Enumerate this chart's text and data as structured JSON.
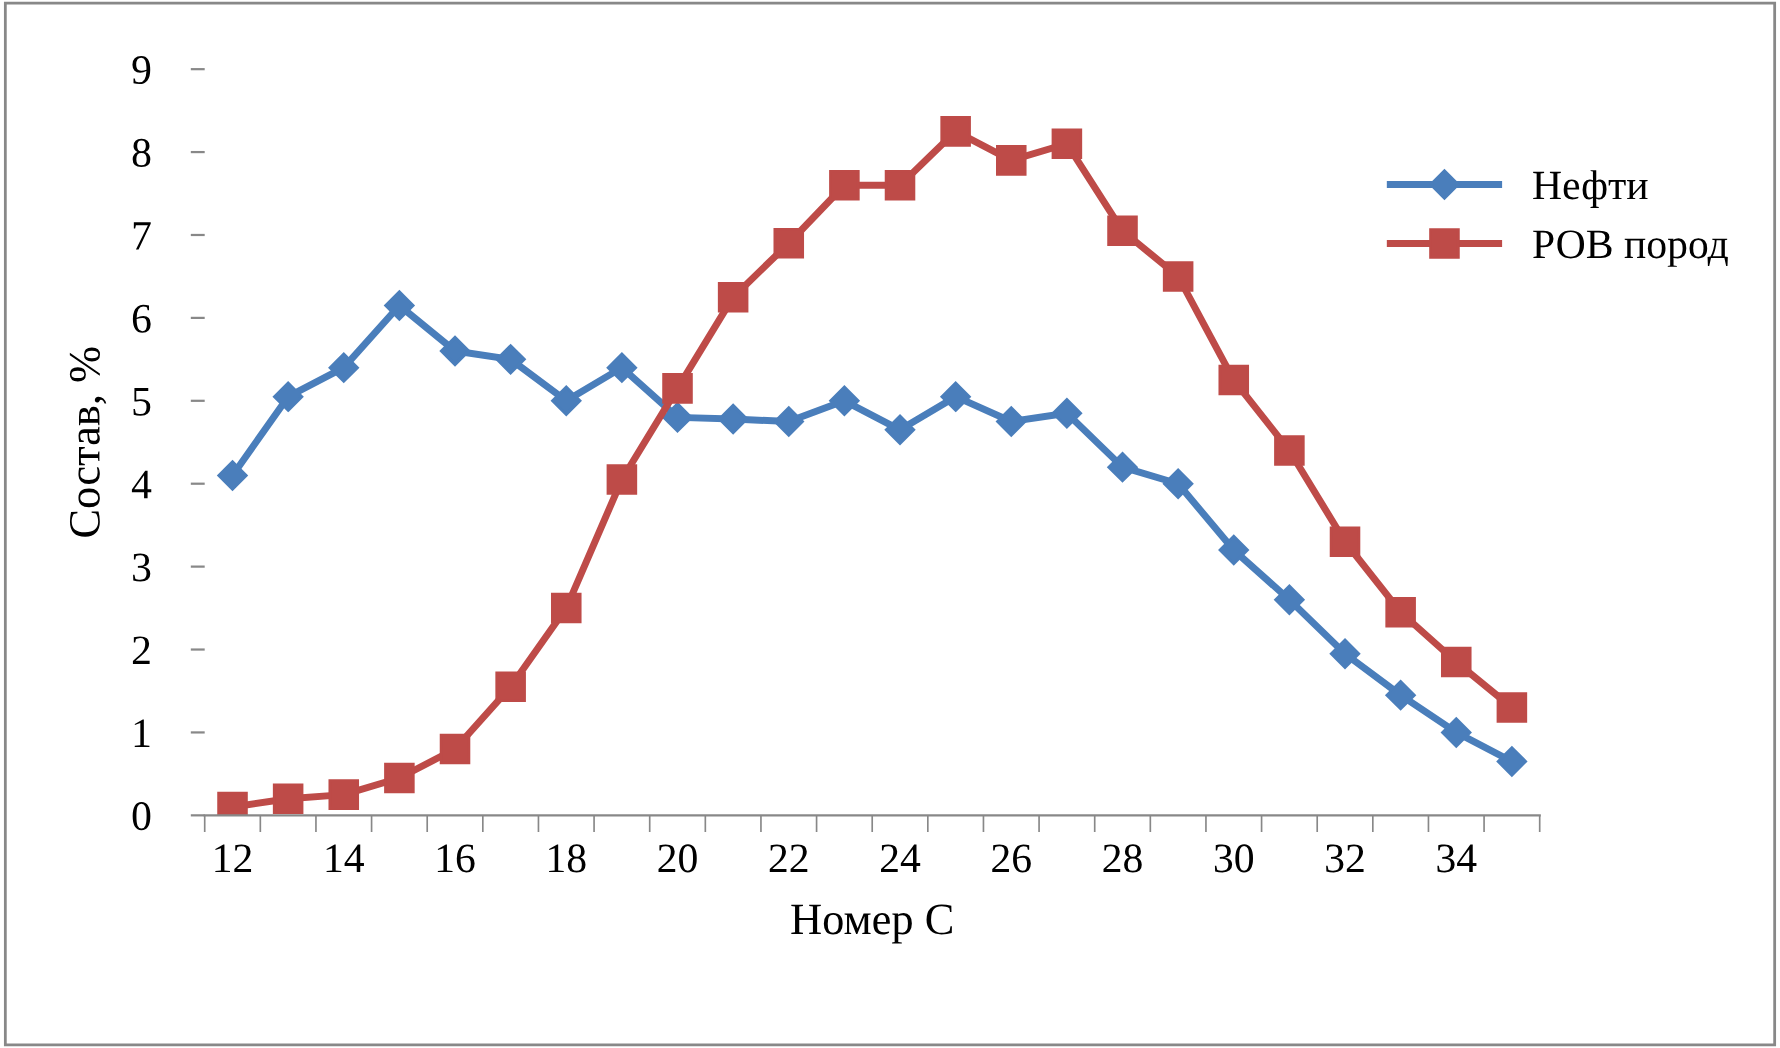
{
  "chart_data": {
    "type": "line",
    "xlabel": "Номер С",
    "ylabel": "Состав, %",
    "categories": [
      "12",
      null,
      "14",
      null,
      "16",
      null,
      "18",
      null,
      "20",
      null,
      "22",
      null,
      "24",
      null,
      "26",
      null,
      "28",
      null,
      "30",
      null,
      "32",
      null,
      "34",
      null
    ],
    "series": [
      {
        "name": "Нефти",
        "color": "#4a7ebb",
        "marker": "diamond",
        "values": [
          4.1,
          5.05,
          5.4,
          6.15,
          5.6,
          5.5,
          5.0,
          5.4,
          4.8,
          4.78,
          4.75,
          5.0,
          4.65,
          5.05,
          4.75,
          4.85,
          4.2,
          4.0,
          3.2,
          2.6,
          1.95,
          1.45,
          1.0,
          0.65
        ]
      },
      {
        "name": "РОВ пород",
        "color": "#be4b48",
        "marker": "square",
        "values": [
          0.1,
          0.2,
          0.25,
          0.45,
          0.8,
          1.55,
          2.5,
          4.05,
          5.15,
          6.25,
          6.9,
          7.6,
          7.6,
          8.25,
          7.9,
          8.1,
          7.05,
          6.5,
          5.25,
          4.4,
          3.3,
          2.45,
          1.85,
          1.3
        ]
      }
    ],
    "ylim": [
      0,
      9
    ],
    "yticks": [
      0,
      1,
      2,
      3,
      4,
      5,
      6,
      7,
      8,
      9
    ],
    "grid": false,
    "legend": "right",
    "line_style": "solid"
  }
}
